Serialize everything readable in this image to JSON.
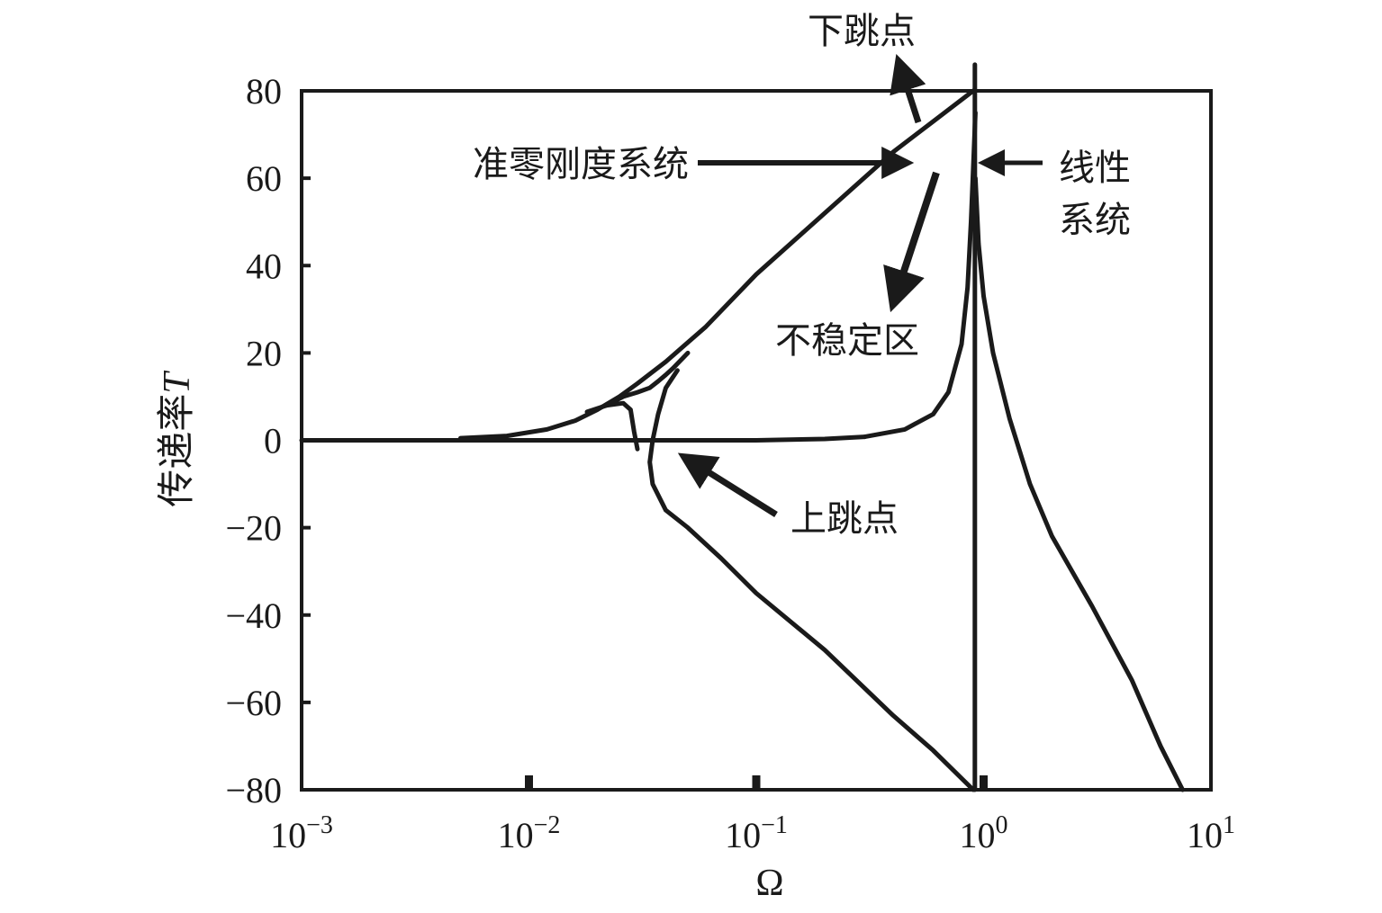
{
  "chart_data": {
    "type": "line",
    "xscale": "log",
    "xlim": [
      0.001,
      10
    ],
    "ylim": [
      -80,
      80
    ],
    "xlabel": "Ω",
    "ylabel_prefix": "传递率",
    "ylabel_var": "T",
    "x_ticks": [
      {
        "base": "10",
        "exp": "−3",
        "value": 0.001
      },
      {
        "base": "10",
        "exp": "−2",
        "value": 0.01
      },
      {
        "base": "10",
        "exp": "−1",
        "value": 0.1
      },
      {
        "base": "10",
        "exp": "0",
        "value": 1
      },
      {
        "base": "10",
        "exp": "1",
        "value": 10
      }
    ],
    "y_ticks": [
      {
        "label": "80",
        "value": 80
      },
      {
        "label": "60",
        "value": 60
      },
      {
        "label": "40",
        "value": 40
      },
      {
        "label": "20",
        "value": 20
      },
      {
        "label": "0",
        "value": 0
      },
      {
        "label": "−20",
        "value": -20
      },
      {
        "label": "−40",
        "value": -40
      },
      {
        "label": "−60",
        "value": -60
      },
      {
        "label": "−80",
        "value": -80
      }
    ],
    "grid": false,
    "series": [
      {
        "key": "baseline",
        "color": "#1a1a1a",
        "x": [
          0.001,
          0.005,
          0.01,
          0.02,
          0.03,
          0.05,
          0.1,
          0.2,
          0.3
        ],
        "y": [
          0,
          0,
          0,
          0,
          0,
          0,
          0,
          0.3,
          0.8
        ]
      },
      {
        "key": "qzs_upper",
        "color": "#1a1a1a",
        "x": [
          0.005,
          0.008,
          0.012,
          0.016,
          0.02,
          0.025,
          0.03,
          0.04,
          0.06,
          0.1,
          0.2,
          0.4,
          0.6,
          0.9
        ],
        "y": [
          0.5,
          1,
          2.5,
          4.5,
          7,
          10,
          13,
          18,
          26,
          38,
          52,
          66,
          73,
          80
        ]
      },
      {
        "key": "qzs_branch",
        "color": "#1a1a1a",
        "x": [
          0.022,
          0.026,
          0.03,
          0.034,
          0.037,
          0.04,
          0.043,
          0.05
        ],
        "y": [
          8,
          10,
          11,
          12,
          13.5,
          15,
          16.5,
          20
        ]
      },
      {
        "key": "qzs_inner_loop",
        "color": "#1a1a1a",
        "x": [
          0.018,
          0.022,
          0.026,
          0.028,
          0.029,
          0.03
        ],
        "y": [
          6.5,
          8,
          8.5,
          7,
          2,
          -2
        ]
      },
      {
        "key": "qzs_lower",
        "color": "#1a1a1a",
        "x": [
          0.045,
          0.04,
          0.037,
          0.035,
          0.034,
          0.035,
          0.04,
          0.05,
          0.07,
          0.1,
          0.2,
          0.4,
          0.6,
          0.9
        ],
        "y": [
          16,
          12,
          6,
          0,
          -5,
          -10,
          -16,
          -20,
          -27,
          -35,
          -48,
          -63,
          -71,
          -80
        ]
      },
      {
        "key": "linear",
        "color": "#1a1a1a",
        "x": [
          0.3,
          0.45,
          0.6,
          0.7,
          0.8,
          0.85,
          0.88,
          0.9,
          0.92
        ],
        "y": [
          0.8,
          2.5,
          6,
          11,
          22,
          35,
          50,
          62,
          75
        ]
      },
      {
        "key": "linear_peak_line",
        "color": "#1a1a1a",
        "x": [
          0.915,
          0.915
        ],
        "y": [
          -80,
          86
        ]
      },
      {
        "key": "linear_decay",
        "color": "#1a1a1a",
        "x": [
          0.92,
          0.95,
          1.0,
          1.1,
          1.3,
          1.6,
          2.0,
          3.0,
          4.5,
          6.0,
          7.5
        ],
        "y": [
          60,
          45,
          33,
          20,
          5,
          -10,
          -22,
          -38,
          -55,
          -70,
          -80
        ]
      }
    ],
    "annotations": [
      {
        "key": "down_jump",
        "text": "下跳点"
      },
      {
        "key": "qzs",
        "text": "准零刚度系统"
      },
      {
        "key": "unstable",
        "text": "不稳定区"
      },
      {
        "key": "up_jump",
        "text": "上跳点"
      },
      {
        "key": "linear_l1",
        "text": "线性"
      },
      {
        "key": "linear_l2",
        "text": "系统"
      }
    ]
  }
}
